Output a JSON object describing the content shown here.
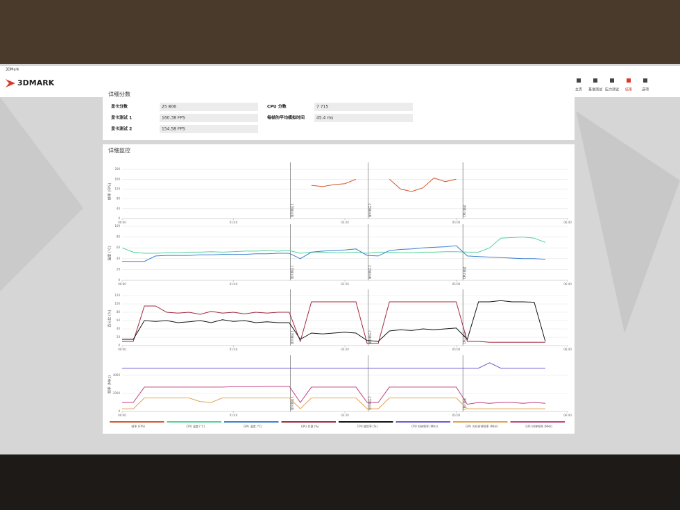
{
  "app": {
    "window_title": "3DMark",
    "logo": "3DMARK",
    "nav": [
      "主页",
      "基准测试",
      "压力测试",
      "结果",
      "选项"
    ]
  },
  "scores": {
    "title": "详细分数",
    "left": [
      {
        "label": "显卡分数",
        "value": "25 806"
      },
      {
        "label": "显卡测试 1",
        "value": "160.38 FPS"
      },
      {
        "label": "显卡测试 2",
        "value": "154.58 FPS"
      }
    ],
    "right": [
      {
        "label": "CPU 分数",
        "value": "7 715"
      },
      {
        "label": "每帧的平均模拟时间",
        "value": "45.4 ms"
      }
    ]
  },
  "monitoring": {
    "title": "详细监控",
    "x": [
      0,
      10,
      20,
      30,
      40,
      50,
      60,
      70,
      80,
      90,
      100,
      110,
      120,
      130,
      140,
      150,
      160,
      170,
      180,
      190,
      200,
      210,
      220,
      230,
      240,
      250,
      260,
      270,
      280,
      290,
      300,
      310,
      320,
      330,
      340,
      350,
      360,
      370,
      380,
      390,
      400
    ],
    "xlim": [
      0,
      400
    ],
    "xticks": [
      {
        "value": 0,
        "label": "00:00"
      },
      {
        "value": 100,
        "label": "01:40"
      },
      {
        "value": 200,
        "label": "03:20"
      },
      {
        "value": 300,
        "label": "05:00"
      },
      {
        "value": 400,
        "label": "06:40"
      }
    ],
    "markers": [
      {
        "value": 151,
        "label": "显卡测试 1"
      },
      {
        "value": 221,
        "label": "显卡测试 2"
      },
      {
        "value": 306,
        "label": "CPU 测试"
      }
    ],
    "panels": [
      {
        "type": "line",
        "ylabel": "帧率 (FPS)",
        "ylim": [
          0,
          220
        ],
        "yticks": [
          0,
          40,
          80,
          120,
          160,
          200
        ],
        "series": [
          {
            "name": "帧率 (FPS)",
            "color": "#d9542a",
            "values": [
              null,
              null,
              null,
              null,
              null,
              null,
              null,
              null,
              null,
              null,
              null,
              null,
              null,
              null,
              null,
              null,
              null,
              135,
              130,
              138,
              142,
              160,
              null,
              null,
              160,
              120,
              110,
              125,
              165,
              150,
              160,
              null,
              null,
              null,
              null,
              null,
              null,
              null,
              null,
              null,
              null
            ]
          }
        ]
      },
      {
        "type": "line",
        "ylabel": "温度 (°C)",
        "ylim": [
          0,
          100
        ],
        "yticks": [
          0,
          20,
          40,
          60,
          80,
          100
        ],
        "series": [
          {
            "name": "CPU 温度 (°C)",
            "color": "#4fd39a",
            "values": [
              60,
              52,
              50,
              50,
              51,
              51,
              52,
              52,
              53,
              52,
              53,
              54,
              54,
              55,
              54,
              55,
              50,
              52,
              52,
              51,
              51,
              52,
              50,
              52,
              52,
              51,
              51,
              52,
              52,
              53,
              53,
              52,
              52,
              60,
              78,
              79,
              80,
              78,
              70,
              null,
              null
            ]
          },
          {
            "name": "GPU 温度 (°C)",
            "color": "#3a7fd0",
            "values": [
              35,
              35,
              35,
              45,
              46,
              46,
              46,
              47,
              47,
              48,
              48,
              48,
              49,
              49,
              50,
              50,
              40,
              52,
              54,
              55,
              56,
              58,
              46,
              45,
              55,
              57,
              58,
              60,
              61,
              62,
              64,
              45,
              44,
              43,
              42,
              41,
              40,
              40,
              39,
              null,
              null
            ]
          }
        ]
      },
      {
        "type": "line",
        "ylabel": "百分比 (%)",
        "ylim": [
          0,
          130
        ],
        "yticks": [
          0,
          20,
          40,
          60,
          80,
          100,
          120
        ],
        "series": [
          {
            "name": "GPU 负载 (%)",
            "color": "#a0283c",
            "values": [
              10,
              10,
              95,
              95,
              80,
              78,
              80,
              75,
              82,
              78,
              80,
              76,
              80,
              78,
              80,
              80,
              10,
              105,
              105,
              105,
              105,
              105,
              5,
              5,
              105,
              105,
              105,
              105,
              105,
              105,
              105,
              10,
              10,
              8,
              8,
              8,
              8,
              8,
              8,
              null,
              null
            ]
          },
          {
            "name": "CPU 使用率 (%)",
            "color": "#111111",
            "values": [
              15,
              15,
              60,
              58,
              60,
              55,
              57,
              60,
              55,
              62,
              58,
              60,
              55,
              57,
              55,
              55,
              15,
              30,
              28,
              30,
              32,
              30,
              12,
              10,
              35,
              38,
              36,
              40,
              38,
              40,
              42,
              15,
              105,
              105,
              108,
              105,
              105,
              104,
              10,
              null,
              null
            ]
          }
        ]
      },
      {
        "type": "line",
        "ylabel": "频率 (MHz)",
        "ylim": [
          0,
          6000
        ],
        "yticks": [
          0,
          2000,
          4000
        ],
        "series": [
          {
            "name": "CPU 时钟频率 (MHz)",
            "color": "#6a5acd",
            "values": [
              4800,
              4800,
              4800,
              4800,
              4800,
              4800,
              4800,
              4800,
              4800,
              4800,
              4800,
              4800,
              4800,
              4800,
              4800,
              4800,
              4800,
              4800,
              4800,
              4800,
              4800,
              4800,
              4800,
              4800,
              4800,
              4800,
              4800,
              4800,
              4800,
              4800,
              4800,
              4800,
              4800,
              5400,
              4800,
              4800,
              4800,
              4800,
              4800,
              null,
              null
            ]
          },
          {
            "name": "GPU 内存时钟频率 (MHz)",
            "color": "#e0a050",
            "values": [
              300,
              300,
              1500,
              1500,
              1500,
              1500,
              1500,
              1100,
              1000,
              1500,
              1500,
              1500,
              1500,
              1500,
              1500,
              1500,
              300,
              1500,
              1500,
              1500,
              1500,
              1500,
              300,
              300,
              1500,
              1500,
              1500,
              1500,
              1500,
              1500,
              1500,
              300,
              300,
              300,
              300,
              300,
              300,
              300,
              300,
              null,
              null
            ]
          },
          {
            "name": "GPU 时钟频率 (MHz)",
            "color": "#c04080",
            "values": [
              1000,
              1000,
              2700,
              2700,
              2700,
              2700,
              2700,
              2700,
              2700,
              2700,
              2750,
              2750,
              2750,
              2800,
              2800,
              2800,
              1000,
              2700,
              2700,
              2700,
              2700,
              2700,
              1000,
              1000,
              2700,
              2700,
              2700,
              2700,
              2700,
              2700,
              2700,
              800,
              1000,
              900,
              1000,
              1000,
              900,
              1000,
              900,
              null,
              null
            ]
          }
        ]
      }
    ]
  }
}
